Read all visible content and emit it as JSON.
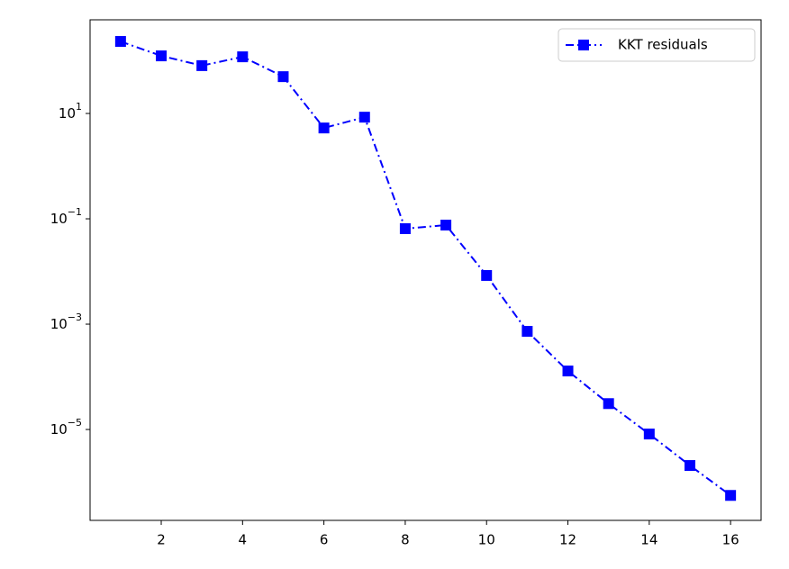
{
  "chart_data": {
    "type": "line",
    "log_y": true,
    "grid": false,
    "legend": "upper right",
    "x": [
      1,
      2,
      3,
      4,
      5,
      6,
      7,
      8,
      9,
      10,
      11,
      12,
      13,
      14,
      15,
      16
    ],
    "series": [
      {
        "name": "KKT residuals",
        "color": "#0000ff",
        "marker": "square",
        "linestyle": "dashdot",
        "values": [
          233,
          124,
          81,
          119,
          50,
          5.3,
          8.5,
          0.065,
          0.076,
          0.0084,
          0.00073,
          0.000129,
          3.1e-05,
          8.2e-06,
          2.07e-06,
          5.6e-07
        ]
      }
    ],
    "xlim": [
      0.25,
      16.75
    ],
    "xticks": [
      2,
      4,
      6,
      8,
      10,
      12,
      14,
      16
    ],
    "ylim": [
      1.88e-07,
      600
    ],
    "yticks": [
      {
        "value": 10,
        "label": "10^1"
      },
      {
        "value": 0.1,
        "label": "10^−1"
      },
      {
        "value": 0.001,
        "label": "10^−3"
      },
      {
        "value": 1e-05,
        "label": "10^−5"
      }
    ]
  }
}
